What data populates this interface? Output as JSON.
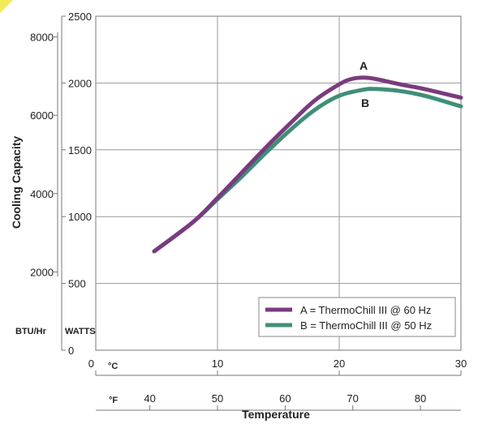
{
  "chart_data": {
    "type": "line",
    "title": "",
    "ylabel": "Cooling Capacity",
    "xlabel": "Temperature",
    "x_celsius_ticks": [
      0,
      10,
      20,
      30
    ],
    "x_fahrenheit_ticks": [
      40,
      50,
      60,
      70,
      80
    ],
    "y_watts_ticks": [
      0,
      500,
      1000,
      1500,
      2000,
      2500
    ],
    "y_btu_ticks": [
      2000,
      4000,
      6000,
      8000
    ],
    "unit_celsius": "°C",
    "unit_fahrenheit": "°F",
    "unit_btu": "BTU/Hr",
    "unit_watts": "WATTS",
    "xlim": [
      0,
      30
    ],
    "ylim": [
      0,
      2500
    ],
    "grid": true,
    "legend_position": "bottom-right",
    "series": [
      {
        "name": "A",
        "legend": "A = ThermoChill III @ 60 Hz",
        "color": "#7a3b7e",
        "x": [
          4.8,
          8,
          10,
          12,
          14,
          16,
          18,
          20,
          21,
          22,
          23,
          25,
          27,
          30
        ],
        "y": [
          740,
          960,
          1140,
          1330,
          1520,
          1700,
          1870,
          1990,
          2030,
          2040,
          2030,
          1990,
          1955,
          1890
        ]
      },
      {
        "name": "B",
        "legend": "B = ThermoChill III @ 50 Hz",
        "color": "#3f8f78",
        "x": [
          4.8,
          8,
          10,
          12,
          14,
          16,
          18,
          20,
          22,
          23,
          25,
          27,
          30
        ],
        "y": [
          740,
          960,
          1130,
          1300,
          1480,
          1650,
          1800,
          1905,
          1950,
          1955,
          1940,
          1905,
          1825
        ]
      }
    ]
  }
}
